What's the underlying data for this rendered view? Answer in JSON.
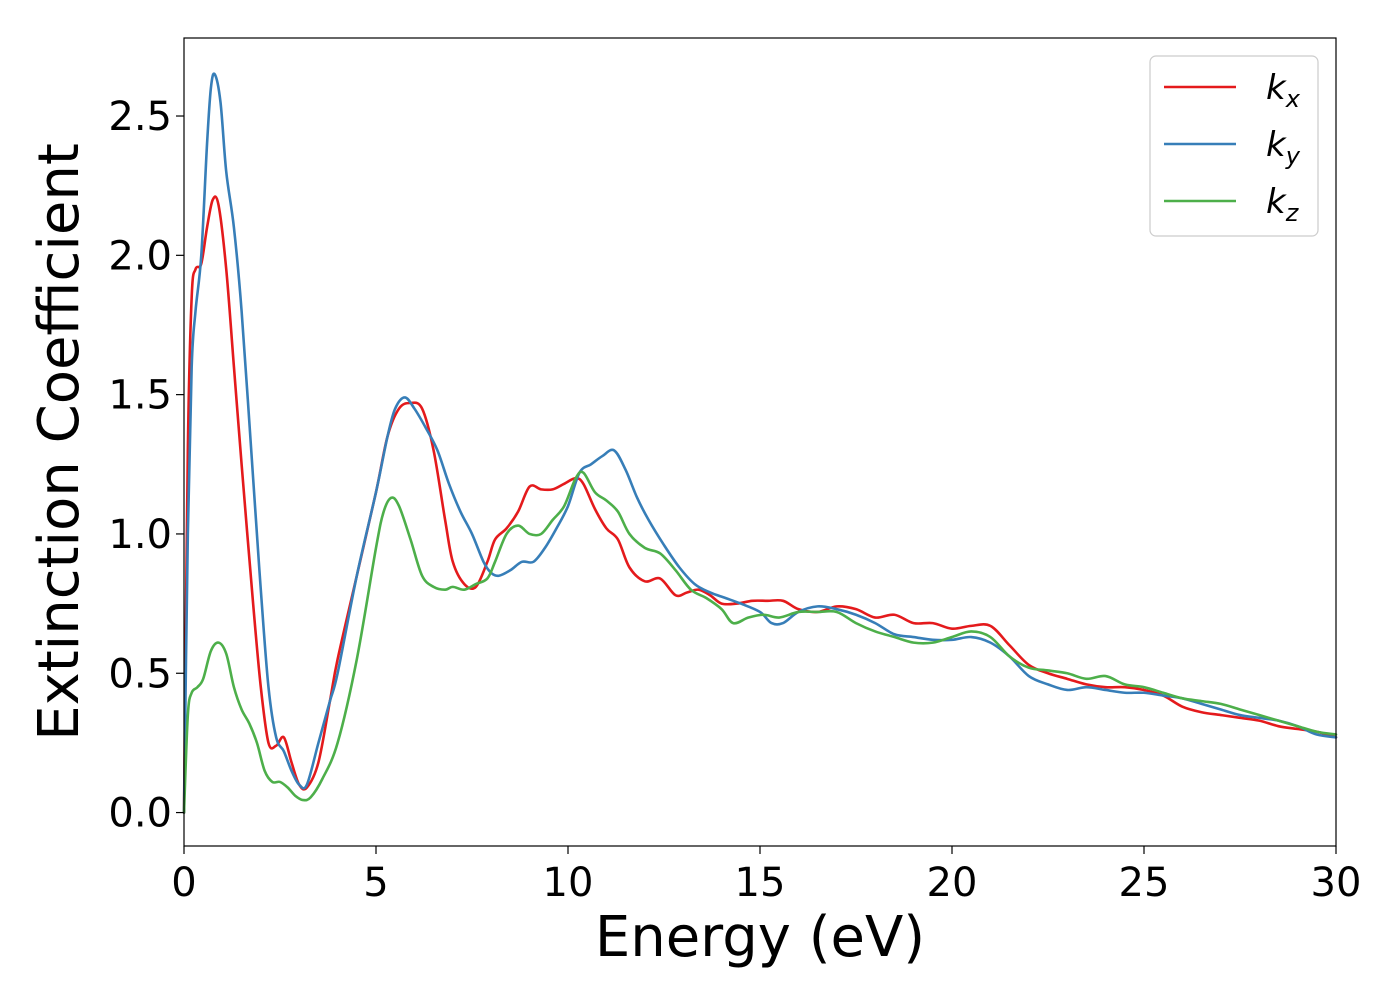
{
  "chart_data": {
    "type": "line",
    "title": "",
    "xlabel": "Energy (eV)",
    "ylabel": "Extinction Coefficient",
    "xlim": [
      0,
      30
    ],
    "ylim": [
      -0.12,
      2.78
    ],
    "xticks": [
      0,
      5,
      10,
      15,
      20,
      25,
      30
    ],
    "xtick_labels": [
      "0",
      "5",
      "10",
      "15",
      "20",
      "25",
      "30"
    ],
    "yticks": [
      0.0,
      0.5,
      1.0,
      1.5,
      2.0,
      2.5
    ],
    "ytick_labels": [
      "0.0",
      "0.5",
      "1.0",
      "1.5",
      "2.0",
      "2.5"
    ],
    "grid": false,
    "legend_position": "top-right",
    "series": [
      {
        "name": "k_x",
        "legend_base": "k",
        "legend_sub": "x",
        "color": "#e41a1c",
        "x": [
          0,
          0.1,
          0.2,
          0.3,
          0.45,
          0.6,
          0.75,
          0.9,
          1.1,
          1.3,
          1.5,
          1.8,
          2.0,
          2.2,
          2.4,
          2.6,
          2.8,
          3.0,
          3.2,
          3.5,
          3.8,
          4.0,
          4.5,
          5.0,
          5.3,
          5.6,
          5.9,
          6.2,
          6.5,
          6.8,
          7.0,
          7.3,
          7.6,
          7.9,
          8.1,
          8.4,
          8.7,
          9.0,
          9.3,
          9.6,
          9.9,
          10.2,
          10.4,
          10.7,
          11.0,
          11.3,
          11.6,
          12.0,
          12.4,
          12.8,
          13.1,
          13.4,
          13.7,
          14.0,
          14.4,
          14.8,
          15.2,
          15.6,
          16.0,
          16.5,
          17.0,
          17.5,
          18.0,
          18.5,
          19.0,
          19.5,
          20.0,
          20.5,
          21.0,
          21.5,
          22.0,
          22.5,
          23.0,
          23.5,
          24.0,
          24.5,
          25.0,
          25.5,
          26.0,
          26.5,
          27.0,
          27.5,
          28.0,
          28.5,
          29.0,
          29.5,
          30.0
        ],
        "values": [
          0.0,
          1.3,
          1.85,
          1.95,
          1.97,
          2.1,
          2.2,
          2.18,
          1.95,
          1.6,
          1.25,
          0.75,
          0.45,
          0.25,
          0.24,
          0.27,
          0.18,
          0.1,
          0.09,
          0.18,
          0.4,
          0.55,
          0.85,
          1.15,
          1.35,
          1.45,
          1.47,
          1.45,
          1.3,
          1.05,
          0.9,
          0.82,
          0.81,
          0.9,
          0.98,
          1.02,
          1.08,
          1.17,
          1.16,
          1.16,
          1.18,
          1.2,
          1.18,
          1.09,
          1.02,
          0.98,
          0.88,
          0.83,
          0.84,
          0.78,
          0.79,
          0.8,
          0.78,
          0.75,
          0.75,
          0.76,
          0.76,
          0.76,
          0.73,
          0.72,
          0.74,
          0.73,
          0.7,
          0.71,
          0.68,
          0.68,
          0.66,
          0.67,
          0.67,
          0.6,
          0.53,
          0.5,
          0.48,
          0.46,
          0.45,
          0.45,
          0.44,
          0.42,
          0.38,
          0.36,
          0.35,
          0.34,
          0.33,
          0.31,
          0.3,
          0.29,
          0.27
        ]
      },
      {
        "name": "k_y",
        "legend_base": "k",
        "legend_sub": "y",
        "color": "#377eb8",
        "x": [
          0,
          0.1,
          0.2,
          0.3,
          0.45,
          0.6,
          0.7,
          0.8,
          0.95,
          1.1,
          1.3,
          1.5,
          1.8,
          2.0,
          2.2,
          2.4,
          2.6,
          2.8,
          3.0,
          3.2,
          3.5,
          3.8,
          4.0,
          4.5,
          5.0,
          5.3,
          5.5,
          5.75,
          6.0,
          6.3,
          6.6,
          6.9,
          7.2,
          7.5,
          7.8,
          8.0,
          8.2,
          8.5,
          8.8,
          9.1,
          9.4,
          9.7,
          10.0,
          10.3,
          10.6,
          10.9,
          11.2,
          11.5,
          11.8,
          12.1,
          12.5,
          12.9,
          13.3,
          13.7,
          14.1,
          14.5,
          15.0,
          15.3,
          15.6,
          16.0,
          16.5,
          17.0,
          17.5,
          18.0,
          18.5,
          19.0,
          19.5,
          20.0,
          20.5,
          21.0,
          21.5,
          22.0,
          22.5,
          23.0,
          23.5,
          24.0,
          24.5,
          25.0,
          25.5,
          26.0,
          26.5,
          27.0,
          27.5,
          28.0,
          28.5,
          29.0,
          29.5,
          30.0
        ],
        "values": [
          0.0,
          1.0,
          1.6,
          1.8,
          2.0,
          2.4,
          2.6,
          2.65,
          2.55,
          2.3,
          2.1,
          1.8,
          1.2,
          0.8,
          0.45,
          0.27,
          0.22,
          0.15,
          0.1,
          0.1,
          0.25,
          0.4,
          0.5,
          0.85,
          1.15,
          1.35,
          1.45,
          1.49,
          1.45,
          1.38,
          1.3,
          1.18,
          1.08,
          1.0,
          0.9,
          0.86,
          0.85,
          0.87,
          0.9,
          0.9,
          0.95,
          1.02,
          1.1,
          1.22,
          1.25,
          1.28,
          1.3,
          1.23,
          1.13,
          1.05,
          0.96,
          0.88,
          0.82,
          0.79,
          0.77,
          0.75,
          0.72,
          0.68,
          0.68,
          0.72,
          0.74,
          0.73,
          0.71,
          0.68,
          0.64,
          0.63,
          0.62,
          0.62,
          0.63,
          0.61,
          0.56,
          0.49,
          0.46,
          0.44,
          0.45,
          0.44,
          0.43,
          0.43,
          0.42,
          0.41,
          0.39,
          0.37,
          0.35,
          0.34,
          0.33,
          0.31,
          0.28,
          0.27
        ]
      },
      {
        "name": "k_z",
        "legend_base": "k",
        "legend_sub": "z",
        "color": "#4daf4a",
        "x": [
          0,
          0.1,
          0.2,
          0.35,
          0.5,
          0.7,
          0.9,
          1.1,
          1.3,
          1.5,
          1.7,
          1.9,
          2.1,
          2.3,
          2.5,
          2.7,
          2.9,
          3.1,
          3.3,
          3.6,
          4.0,
          4.5,
          5.0,
          5.2,
          5.4,
          5.6,
          5.9,
          6.2,
          6.5,
          6.8,
          7.0,
          7.3,
          7.6,
          7.9,
          8.1,
          8.4,
          8.7,
          9.0,
          9.3,
          9.6,
          9.9,
          10.2,
          10.4,
          10.7,
          11.0,
          11.3,
          11.6,
          12.0,
          12.4,
          12.8,
          13.2,
          13.6,
          14.0,
          14.3,
          14.7,
          15.1,
          15.5,
          16.0,
          16.5,
          17.0,
          17.5,
          18.0,
          18.5,
          19.0,
          19.5,
          20.0,
          20.5,
          21.0,
          21.5,
          22.0,
          22.5,
          23.0,
          23.5,
          24.0,
          24.5,
          25.0,
          25.5,
          26.0,
          26.5,
          27.0,
          27.5,
          28.0,
          28.5,
          29.0,
          29.5,
          30.0
        ],
        "values": [
          0.0,
          0.35,
          0.43,
          0.45,
          0.48,
          0.58,
          0.61,
          0.57,
          0.45,
          0.37,
          0.32,
          0.25,
          0.15,
          0.11,
          0.11,
          0.09,
          0.06,
          0.045,
          0.055,
          0.12,
          0.25,
          0.55,
          0.95,
          1.08,
          1.13,
          1.1,
          0.98,
          0.85,
          0.81,
          0.8,
          0.81,
          0.8,
          0.82,
          0.84,
          0.9,
          1.0,
          1.03,
          1.0,
          1.0,
          1.05,
          1.1,
          1.2,
          1.22,
          1.15,
          1.12,
          1.08,
          1.0,
          0.95,
          0.93,
          0.87,
          0.8,
          0.77,
          0.73,
          0.68,
          0.7,
          0.71,
          0.7,
          0.72,
          0.72,
          0.72,
          0.68,
          0.65,
          0.63,
          0.61,
          0.61,
          0.63,
          0.65,
          0.63,
          0.56,
          0.52,
          0.51,
          0.5,
          0.48,
          0.49,
          0.46,
          0.45,
          0.43,
          0.41,
          0.4,
          0.39,
          0.37,
          0.35,
          0.33,
          0.31,
          0.29,
          0.28
        ]
      }
    ]
  }
}
